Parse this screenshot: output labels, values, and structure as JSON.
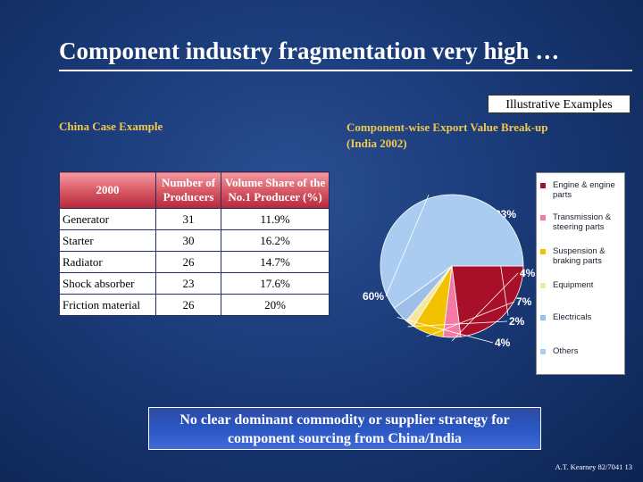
{
  "title": "Component industry fragmentation very high …",
  "illustrative": "Illustrative Examples",
  "china_label": "China Case Example",
  "export_label_line1": "Component-wise Export Value Break-up",
  "export_label_line2": "(India 2002)",
  "table": {
    "headers": [
      "2000",
      "Number of Producers",
      "Volume Share of the No.1 Producer (%)"
    ],
    "header_lines": [
      [
        "2000"
      ],
      [
        "Number of",
        "Producers"
      ],
      [
        "Volume Share of the",
        "No.1 Producer (%)"
      ]
    ],
    "rows": [
      [
        "Generator",
        "31",
        "11.9%"
      ],
      [
        "Starter",
        "30",
        "16.2%"
      ],
      [
        "Radiator",
        "26",
        "14.7%"
      ],
      [
        "Shock absorber",
        "23",
        "17.6%"
      ],
      [
        "Friction material",
        "26",
        "20%"
      ]
    ]
  },
  "chart_data": {
    "type": "pie",
    "title": "",
    "labels": [
      "Engine & engine parts",
      "Transmission & steering parts",
      "Suspension & braking parts",
      "Equipment",
      "Electricals",
      "Others"
    ],
    "values": [
      23,
      4,
      7,
      2,
      4,
      60
    ],
    "value_labels": [
      "23%",
      "4%",
      "7%",
      "2%",
      "4%",
      "60%"
    ],
    "colors": [
      "#a8102a",
      "#f47aa6",
      "#f2c200",
      "#f5e6a0",
      "#9ec0e6",
      "#a9ccf0"
    ],
    "legend_position": "right",
    "start_angle_deg": 0
  },
  "callout_line1": "No clear dominant commodity or supplier strategy for",
  "callout_line2": "component sourcing from China/India",
  "footer": "A.T. Kearney 82/7041   13"
}
